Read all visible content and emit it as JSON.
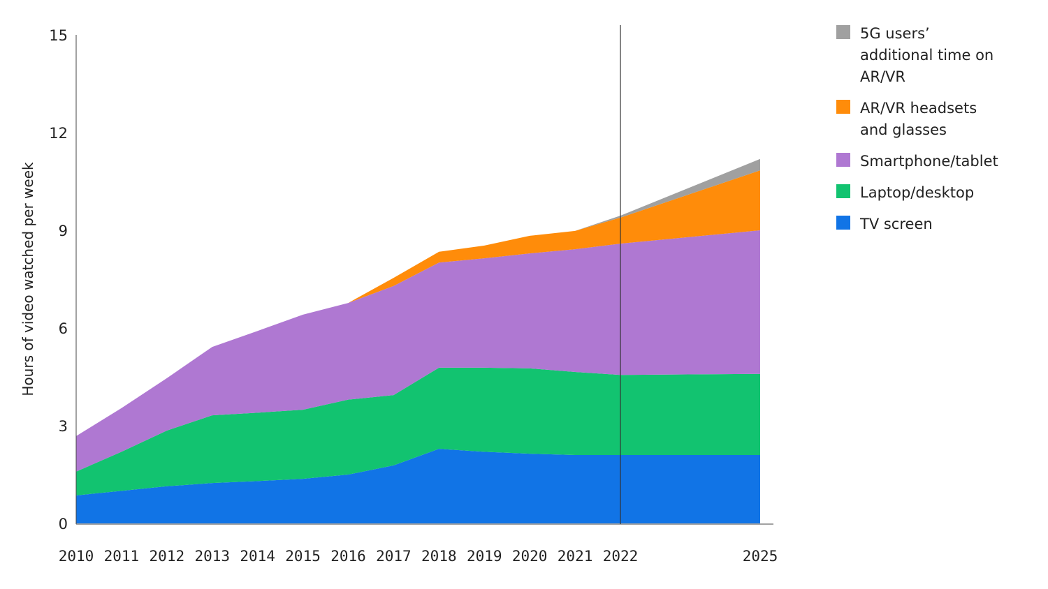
{
  "chart_data": {
    "type": "area",
    "stacked": true,
    "title": "",
    "xlabel": "",
    "ylabel": "Hours of video watched per week",
    "ylim": [
      0,
      15
    ],
    "yticks": [
      "0",
      "3",
      "6",
      "9",
      "12",
      "15"
    ],
    "x": [
      2010,
      2011,
      2012,
      2013,
      2014,
      2015,
      2016,
      2017,
      2018,
      2019,
      2020,
      2021,
      2022,
      2025
    ],
    "xticks": [
      "2010",
      "2011",
      "2012",
      "2013",
      "2014",
      "2015",
      "2016",
      "2017",
      "2018",
      "2019",
      "2020",
      "2021",
      "2022",
      "2025"
    ],
    "reference_line_x": 2022,
    "grid": false,
    "legend_position": "top-right",
    "series": [
      {
        "name": "TV screen",
        "color": "#1174e6",
        "values": [
          0.86,
          1.0,
          1.14,
          1.24,
          1.3,
          1.37,
          1.5,
          1.78,
          2.29,
          2.2,
          2.14,
          2.1,
          2.1,
          2.1
        ]
      },
      {
        "name": "Laptop/desktop",
        "color": "#12c370",
        "values": [
          0.73,
          1.2,
          1.71,
          2.08,
          2.1,
          2.12,
          2.3,
          2.16,
          2.49,
          2.58,
          2.62,
          2.55,
          2.46,
          2.49
        ]
      },
      {
        "name": "Smartphone/tablet",
        "color": "#af78d2",
        "values": [
          1.09,
          1.34,
          1.61,
          2.1,
          2.51,
          2.92,
          2.97,
          3.35,
          3.23,
          3.36,
          3.53,
          3.77,
          4.03,
          4.41
        ]
      },
      {
        "name": "AR/VR headsets and glasses",
        "color": "#ff8c0a",
        "values": [
          0,
          0,
          0,
          0,
          0,
          0,
          0,
          0.25,
          0.33,
          0.39,
          0.54,
          0.56,
          0.8,
          1.84
        ]
      },
      {
        "name": "5G users’ additional time on AR/VR",
        "color": "#a0a0a0",
        "values": [
          0,
          0,
          0,
          0,
          0,
          0,
          0,
          0,
          0,
          0,
          0,
          0,
          0.06,
          0.35
        ]
      }
    ],
    "legend_order": [
      "5G users’ additional time on AR/VR",
      "AR/VR headsets and glasses",
      "Smartphone/tablet",
      "Laptop/desktop",
      "TV screen"
    ]
  }
}
